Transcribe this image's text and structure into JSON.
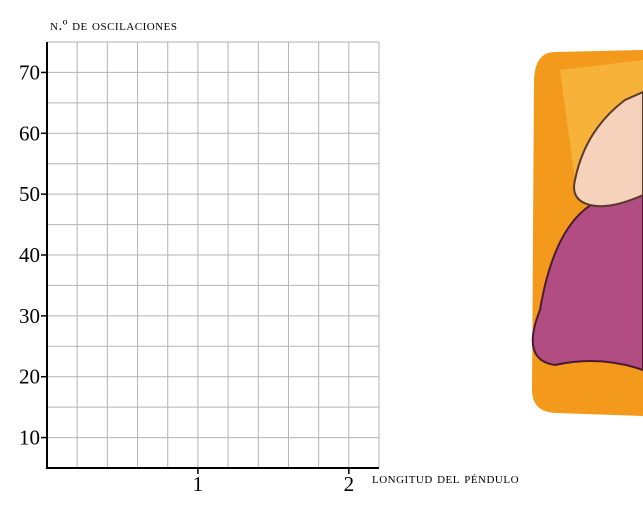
{
  "chart_data": {
    "type": "line",
    "y_label": "n.º de oscilaciones",
    "x_label": "longitud del péndulo",
    "xlim": [
      0,
      2.2
    ],
    "xticks": [
      1,
      2
    ],
    "ylim": [
      5,
      75
    ],
    "yticks": [
      10,
      20,
      30,
      40,
      50,
      60,
      70
    ],
    "minor_xticks": [
      0.2,
      0.4,
      0.6,
      0.8,
      1,
      1.2,
      1.4,
      1.6,
      1.8,
      2,
      2.2
    ],
    "minor_yticks": [
      10,
      15,
      20,
      25,
      30,
      35,
      40,
      45,
      50,
      55,
      60,
      65,
      70,
      75
    ],
    "grid": true,
    "grid_color": "#b3b3b3",
    "axis_color": "#000000",
    "series": []
  }
}
